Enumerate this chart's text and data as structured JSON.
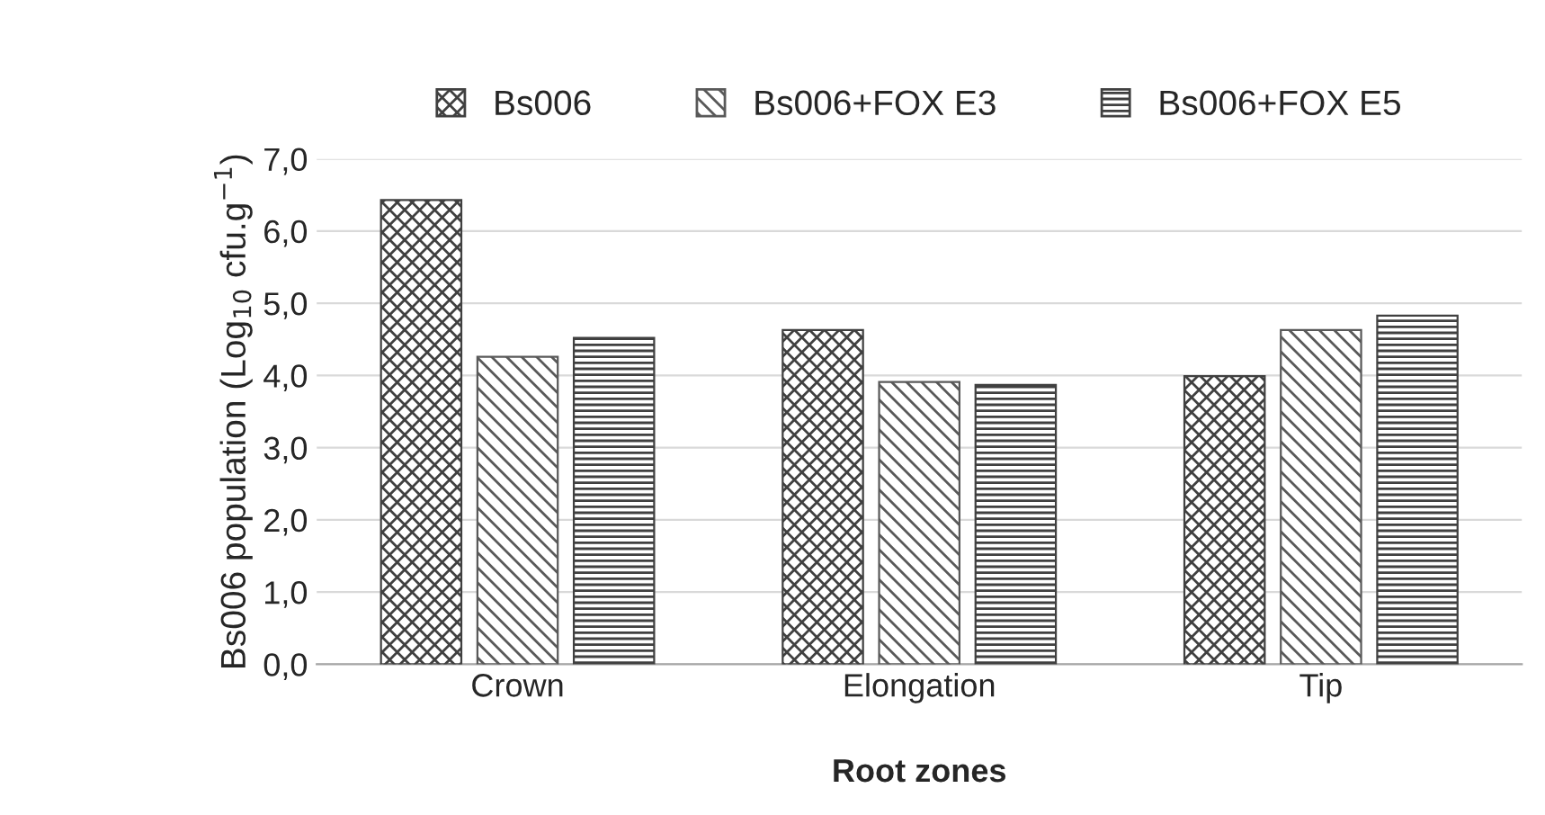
{
  "chart_data": {
    "type": "bar",
    "xlabel": "Root zones",
    "ylabel": "Bs006 population (Log$_{10}$ cfu.g$^{−1}$)",
    "categories": [
      "Crown",
      "Elongation",
      "Tip"
    ],
    "series": [
      {
        "name": "Bs006",
        "color": "#404040",
        "values": [
          6.43,
          4.63,
          3.99
        ]
      },
      {
        "name": "Bs006+FOX E3",
        "color": "#595959",
        "values": [
          4.26,
          3.91,
          4.63
        ]
      },
      {
        "name": "Bs006+FOX E5",
        "color": "#404040",
        "values": [
          4.52,
          3.87,
          4.83
        ]
      }
    ],
    "ylim": [
      0,
      7
    ],
    "yticks": [
      {
        "value": 0,
        "label": "0,0"
      },
      {
        "value": 1,
        "label": "1,0"
      },
      {
        "value": 2,
        "label": "2,0"
      },
      {
        "value": 3,
        "label": "3,0"
      },
      {
        "value": 4,
        "label": "4,0"
      },
      {
        "value": 5,
        "label": "5,0"
      },
      {
        "value": 6,
        "label": "6,0"
      },
      {
        "value": 7,
        "label": "7,0"
      }
    ],
    "grid": "y",
    "legend": "top"
  }
}
